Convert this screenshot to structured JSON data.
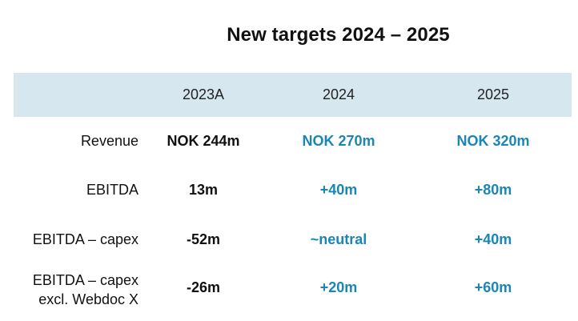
{
  "title": "New targets 2024 – 2025",
  "columns": [
    "2023A",
    "2024",
    "2025"
  ],
  "rows": [
    {
      "label": "Revenue",
      "values": [
        "NOK 244m",
        "NOK 270m",
        "NOK 320m"
      ]
    },
    {
      "label": "EBITDA",
      "values": [
        "13m",
        "+40m",
        "+80m"
      ]
    },
    {
      "label": "EBITDA – capex",
      "values": [
        "-52m",
        "~neutral",
        "+40m"
      ]
    },
    {
      "label_line1": "EBITDA – capex",
      "label_line2": "excl. Webdoc X",
      "values": [
        "-26m",
        "+20m",
        "+60m"
      ]
    }
  ],
  "colors": {
    "header_band": "#d6e7f0",
    "target_text": "#1a86b6",
    "actual_text": "#111111"
  }
}
